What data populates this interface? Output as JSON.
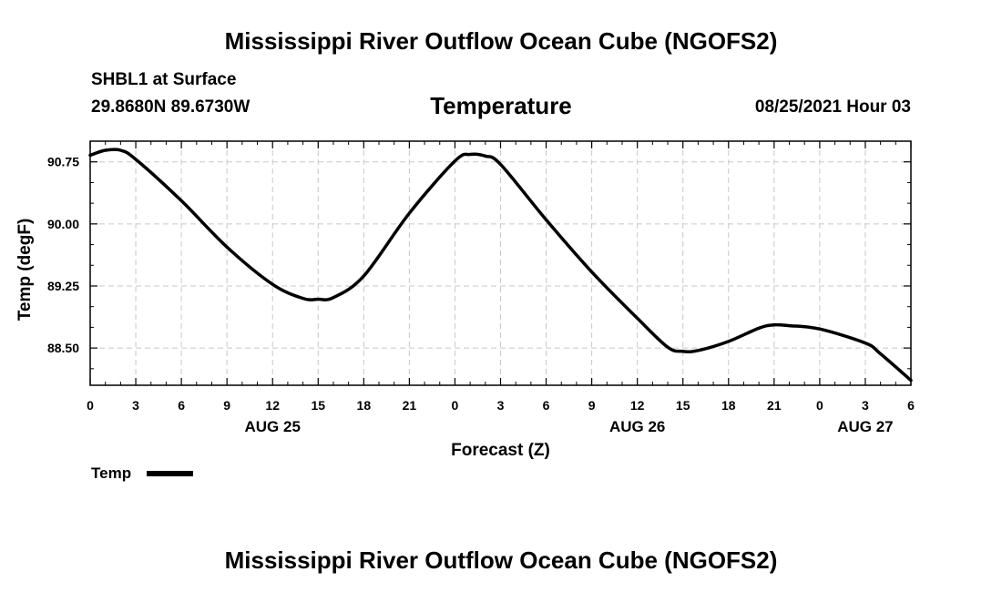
{
  "header": {
    "top_title": "Mississippi River Outflow Ocean Cube (NGOFS2)",
    "station": "SHBL1 at Surface",
    "coords": "29.8680N  89.6730W",
    "variable": "Temperature",
    "datetime": "08/25/2021 Hour 03",
    "bottom_title": "Mississippi River Outflow Ocean Cube (NGOFS2)"
  },
  "chart_data": {
    "type": "line",
    "title": "Temperature",
    "xlabel": "Forecast (Z)",
    "ylabel": "Temp (degF)",
    "xlim": [
      0,
      54
    ],
    "ylim": [
      88.05,
      91.0
    ],
    "x_tick_values": [
      0,
      3,
      6,
      9,
      12,
      15,
      18,
      21,
      24,
      27,
      30,
      33,
      36,
      39,
      42,
      45,
      48,
      51,
      54
    ],
    "x_tick_labels": [
      "0",
      "3",
      "6",
      "9",
      "12",
      "15",
      "18",
      "21",
      "0",
      "3",
      "6",
      "9",
      "12",
      "15",
      "18",
      "21",
      "0",
      "3",
      "6"
    ],
    "day_labels": [
      {
        "x": 12,
        "label": "AUG 25"
      },
      {
        "x": 36,
        "label": "AUG 26"
      },
      {
        "x": 51,
        "label": "AUG 27"
      }
    ],
    "y_ticks": [
      88.5,
      89.25,
      90.0,
      90.75
    ],
    "y_tick_labels": [
      "88.50",
      "89.25",
      "90.00",
      "90.75"
    ],
    "grid": true,
    "legend": {
      "label": "Temp",
      "position": "bottom-left"
    },
    "series": [
      {
        "name": "Temp",
        "x": [
          0,
          1,
          2,
          3,
          6,
          9,
          12,
          14,
          15,
          16,
          18,
          21,
          24,
          25,
          26,
          27,
          30,
          33,
          36,
          38,
          39,
          40,
          42,
          44,
          45,
          46,
          48,
          51,
          52,
          54
        ],
        "values": [
          90.83,
          90.89,
          90.89,
          90.78,
          90.28,
          89.72,
          89.27,
          89.1,
          89.09,
          89.11,
          89.37,
          90.13,
          90.76,
          90.84,
          90.82,
          90.72,
          90.05,
          89.42,
          88.86,
          88.51,
          88.46,
          88.47,
          88.58,
          88.74,
          88.78,
          88.77,
          88.73,
          88.56,
          88.43,
          88.11
        ]
      }
    ]
  }
}
